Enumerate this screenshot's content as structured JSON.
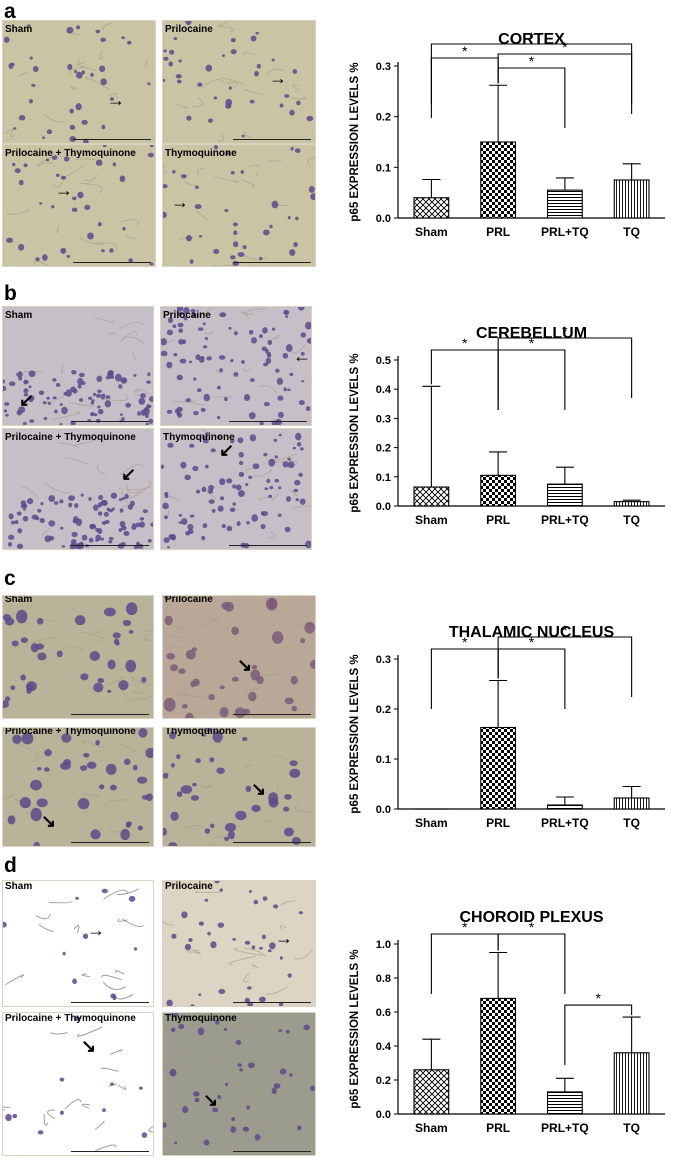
{
  "panels": [
    {
      "letter": "a",
      "images": [
        "Sham",
        "Prilocaine",
        "Prilocaine + Thymoquinone",
        "Thymoquinone"
      ],
      "arrows": [
        "→",
        "→",
        "→",
        "→"
      ]
    },
    {
      "letter": "b",
      "images": [
        "Sham",
        "Prilocaine",
        "Prilocaine + Thymoquinone",
        "Thymoquinone"
      ],
      "arrows": [
        "↙",
        "←",
        "↙",
        "↙"
      ]
    },
    {
      "letter": "c",
      "images": [
        "Sham",
        "Prilocaine",
        "Prilocaine + Thymoquinone",
        "Thymoquinone"
      ],
      "arrows": [
        "",
        "↘",
        "↘",
        "↘"
      ]
    },
    {
      "letter": "d",
      "images": [
        "Sham",
        "Prilocaine",
        "Prilocaine + Thymoquinone",
        "Thymoquinone"
      ],
      "arrows": [
        "→",
        "→",
        "↘",
        "↘"
      ]
    }
  ],
  "colors": {
    "bar_fill": "#ffffff",
    "bar_stroke": "#000000",
    "tissue_a": "#c9c4a3",
    "tissue_b": "#c7bfc8",
    "tissue_c": "#b9b39a",
    "tissue_d": "#ddd4c4",
    "nucleus": "#5a4a8a"
  },
  "chart_data": [
    {
      "type": "bar",
      "title": "CORTEX",
      "ylabel": "p65 EXPRESSION LEVELS %",
      "categories": [
        "Sham",
        "PRL",
        "PRL+TQ",
        "TQ"
      ],
      "values": [
        0.04,
        0.15,
        0.055,
        0.075
      ],
      "errors": [
        0.036,
        0.112,
        0.024,
        0.032
      ],
      "patterns": [
        "cross",
        "checker",
        "horizontal",
        "vertical"
      ],
      "ylim": [
        0,
        0.3
      ],
      "yticks": [
        "0.0",
        "0.1",
        "0.2",
        "0.3"
      ],
      "significance": "*"
    },
    {
      "type": "bar",
      "title": "CEREBELLUM",
      "ylabel": "p65 EXPRESSION LEVELS %",
      "categories": [
        "Sham",
        "PRL",
        "PRL+TQ",
        "TQ"
      ],
      "values": [
        0.065,
        0.105,
        0.075,
        0.015
      ],
      "errors": [
        0.345,
        0.08,
        0.058,
        0.005
      ],
      "patterns": [
        "cross",
        "checker",
        "horizontal",
        "vertical"
      ],
      "ylim": [
        0,
        0.5
      ],
      "yticks": [
        "0.0",
        "0.1",
        "0.2",
        "0.3",
        "0.4",
        "0.5"
      ],
      "significance": "*"
    },
    {
      "type": "bar",
      "title": "THALAMIC NUCLEUS",
      "ylabel": "p65 EXPRESSION LEVELS %",
      "categories": [
        "Sham",
        "PRL",
        "PRL+TQ",
        "TQ"
      ],
      "values": [
        0.0,
        0.163,
        0.008,
        0.022
      ],
      "errors": [
        0.0,
        0.094,
        0.016,
        0.023
      ],
      "patterns": [
        "cross",
        "checker",
        "horizontal",
        "vertical"
      ],
      "ylim": [
        0,
        0.3
      ],
      "yticks": [
        "0.0",
        "0.1",
        "0.2",
        "0.3"
      ],
      "significance": "*"
    },
    {
      "type": "bar",
      "title": "CHOROID PLEXUS",
      "ylabel": "p65 EXPRESSION LEVELS  %",
      "categories": [
        "Sham",
        "PRL",
        "PRL+TQ",
        "TQ"
      ],
      "values": [
        0.26,
        0.68,
        0.13,
        0.36
      ],
      "errors": [
        0.18,
        0.27,
        0.08,
        0.21
      ],
      "patterns": [
        "cross",
        "checker",
        "horizontal",
        "vertical"
      ],
      "ylim": [
        0,
        1.0
      ],
      "yticks": [
        "0.0",
        "0.2",
        "0.4",
        "0.6",
        "0.8",
        "1.0"
      ],
      "significance": "*"
    }
  ]
}
